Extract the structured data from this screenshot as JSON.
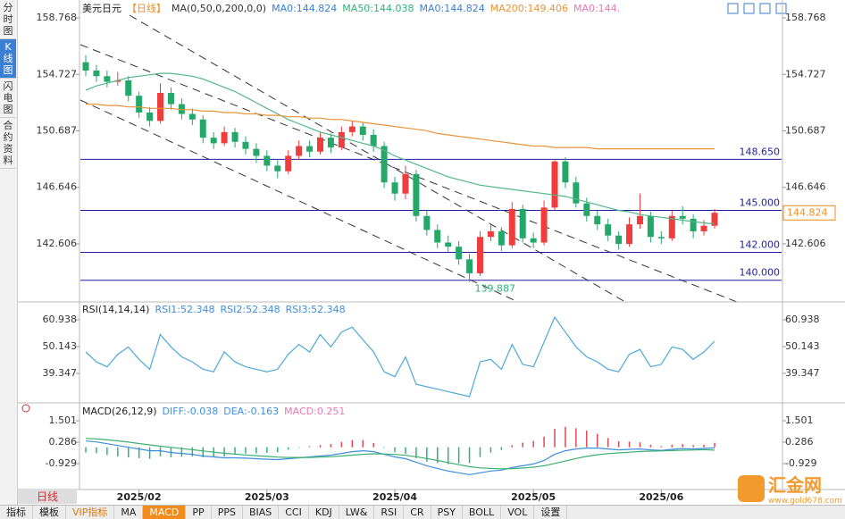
{
  "ui": {
    "tabs": [
      "分时图",
      "K线图",
      "闪电图",
      "合约资料"
    ],
    "period": "日线",
    "toolbar": [
      "指标",
      "模板",
      "VIP指标",
      "MA",
      "MACD",
      "PP",
      "PPS",
      "BIAS",
      "CCI",
      "KDJ",
      "LW&",
      "RSI",
      "CR",
      "PSY",
      "BOLL",
      "VOL",
      "设置"
    ],
    "watermark": "汇金网",
    "watermark_url": "www.gold678.com"
  },
  "chart_data": [
    {
      "type": "candlestick",
      "title": "美元日元",
      "period": "【日线】",
      "legend": [
        {
          "label": "MA(0,50,0,200,0,0)",
          "color": "#333333"
        },
        {
          "label": "MA0:144.824",
          "color": "#3a7fd5"
        },
        {
          "label": "MA50:144.038",
          "color": "#2fb27a"
        },
        {
          "label": "MA0:144.824",
          "color": "#3a7fd5"
        },
        {
          "label": "MA200:149.406",
          "color": "#e8943a"
        },
        {
          "label": "MA0:144.",
          "color": "#e879b0"
        }
      ],
      "up_color": "#f03c3c",
      "down_color": "#24a86a",
      "candles": [
        [
          155.6,
          156.1,
          154.6,
          155.0
        ],
        [
          155.0,
          155.4,
          154.2,
          154.6
        ],
        [
          154.6,
          155.0,
          153.8,
          154.2
        ],
        [
          154.2,
          154.9,
          153.9,
          154.3
        ],
        [
          154.3,
          154.6,
          152.8,
          153.2
        ],
        [
          153.2,
          153.5,
          151.6,
          152.0
        ],
        [
          152.0,
          152.4,
          151.0,
          151.4
        ],
        [
          151.4,
          154.1,
          151.2,
          153.4
        ],
        [
          153.4,
          153.8,
          152.2,
          152.6
        ],
        [
          152.6,
          153.0,
          151.5,
          151.9
        ],
        [
          151.9,
          152.3,
          151.1,
          151.5
        ],
        [
          151.5,
          151.8,
          149.8,
          150.2
        ],
        [
          150.2,
          150.6,
          149.4,
          149.8
        ],
        [
          149.8,
          151.0,
          149.6,
          150.6
        ],
        [
          150.6,
          150.9,
          149.5,
          149.9
        ],
        [
          149.9,
          150.3,
          149.0,
          149.4
        ],
        [
          149.4,
          149.8,
          148.4,
          148.9
        ],
        [
          148.9,
          149.3,
          147.8,
          148.2
        ],
        [
          148.2,
          148.6,
          147.3,
          147.8
        ],
        [
          147.8,
          149.3,
          147.6,
          148.9
        ],
        [
          148.9,
          150.0,
          148.6,
          149.6
        ],
        [
          149.6,
          150.0,
          148.8,
          149.2
        ],
        [
          149.2,
          150.6,
          149.0,
          150.2
        ],
        [
          150.2,
          150.5,
          149.1,
          149.5
        ],
        [
          149.5,
          151.0,
          149.3,
          150.6
        ],
        [
          150.6,
          151.4,
          150.3,
          151.0
        ],
        [
          151.0,
          151.3,
          150.0,
          150.4
        ],
        [
          150.4,
          150.8,
          149.2,
          149.6
        ],
        [
          149.6,
          149.9,
          146.6,
          147.0
        ],
        [
          147.0,
          147.4,
          145.7,
          146.2
        ],
        [
          146.2,
          148.2,
          145.8,
          147.6
        ],
        [
          147.6,
          147.9,
          144.2,
          144.6
        ],
        [
          144.6,
          145.0,
          143.2,
          143.6
        ],
        [
          143.6,
          144.0,
          142.3,
          142.7
        ],
        [
          142.7,
          143.2,
          142.0,
          142.4
        ],
        [
          142.4,
          142.8,
          141.1,
          141.5
        ],
        [
          141.5,
          141.9,
          139.887,
          140.5
        ],
        [
          140.5,
          143.5,
          140.3,
          143.1
        ],
        [
          143.1,
          144.0,
          142.8,
          143.5
        ],
        [
          143.5,
          143.8,
          142.1,
          142.5
        ],
        [
          142.5,
          145.6,
          142.3,
          145.1
        ],
        [
          145.1,
          145.4,
          142.7,
          143.0
        ],
        [
          143.0,
          143.4,
          142.3,
          142.7
        ],
        [
          142.7,
          145.7,
          142.5,
          145.2
        ],
        [
          145.2,
          148.65,
          145.0,
          148.5
        ],
        [
          148.5,
          148.8,
          146.6,
          147.0
        ],
        [
          147.0,
          147.4,
          145.2,
          145.5
        ],
        [
          145.5,
          145.9,
          144.2,
          144.6
        ],
        [
          144.6,
          145.0,
          143.6,
          144.0
        ],
        [
          144.0,
          144.4,
          142.8,
          143.2
        ],
        [
          143.2,
          143.5,
          142.2,
          142.6
        ],
        [
          142.6,
          144.5,
          142.4,
          144.0
        ],
        [
          144.0,
          146.2,
          143.7,
          144.6
        ],
        [
          144.6,
          144.9,
          142.7,
          143.1
        ],
        [
          143.1,
          143.5,
          142.6,
          143.0
        ],
        [
          143.0,
          145.0,
          142.8,
          144.6
        ],
        [
          144.6,
          145.3,
          144.0,
          144.4
        ],
        [
          144.4,
          144.7,
          143.0,
          143.5
        ],
        [
          143.5,
          144.3,
          143.2,
          143.9
        ],
        [
          143.9,
          145.1,
          143.7,
          144.824
        ]
      ],
      "series": [
        {
          "color": "#52b788",
          "values": [
            153.6,
            153.9,
            154.1,
            154.3,
            154.5,
            154.6,
            154.7,
            154.8,
            154.8,
            154.7,
            154.6,
            154.4,
            154.1,
            153.8,
            153.5,
            153.1,
            152.7,
            152.3,
            151.9,
            151.5,
            151.2,
            150.9,
            150.6,
            150.4,
            150.2,
            150.0,
            149.8,
            149.6,
            149.3,
            148.9,
            148.6,
            148.3,
            148.0,
            147.7,
            147.4,
            147.2,
            147.0,
            146.8,
            146.7,
            146.6,
            146.5,
            146.4,
            146.3,
            146.2,
            146.1,
            146.0,
            145.8,
            145.6,
            145.4,
            145.2,
            145.0,
            144.9,
            144.7,
            144.6,
            144.5,
            144.4,
            144.3,
            144.2,
            144.1,
            144.038
          ]
        },
        {
          "color": "#e8943a",
          "values": [
            152.6,
            152.6,
            152.5,
            152.5,
            152.4,
            152.4,
            152.3,
            152.3,
            152.3,
            152.2,
            152.2,
            152.1,
            152.1,
            152.0,
            152.0,
            151.9,
            151.9,
            151.8,
            151.8,
            151.7,
            151.7,
            151.6,
            151.6,
            151.5,
            151.5,
            151.4,
            151.3,
            151.2,
            151.1,
            151.0,
            150.9,
            150.8,
            150.7,
            150.5,
            150.4,
            150.3,
            150.2,
            150.1,
            150.0,
            149.9,
            149.8,
            149.7,
            149.6,
            149.6,
            149.5,
            149.5,
            149.5,
            149.5,
            149.4,
            149.4,
            149.4,
            149.4,
            149.4,
            149.4,
            149.4,
            149.4,
            149.4,
            149.4,
            149.4,
            149.406
          ]
        }
      ],
      "ylim": [
        138.45,
        159.73
      ],
      "yticks": [
        158.768,
        154.727,
        150.687,
        146.646,
        142.606
      ],
      "levels": [
        {
          "value": 148.65,
          "label": "148.650"
        },
        {
          "value": 145,
          "label": "145.000"
        },
        {
          "value": 142,
          "label": "142.000"
        },
        {
          "value": 140,
          "label": "140.000"
        }
      ],
      "xticks": [
        {
          "value": 5,
          "label": "2025/02"
        },
        {
          "value": 17,
          "label": "2025/03"
        },
        {
          "value": 29,
          "label": "2025/04"
        },
        {
          "value": 42,
          "label": "2025/05"
        },
        {
          "value": 54,
          "label": "2025/06"
        }
      ]
    },
    {
      "type": "line",
      "title": "RSI(14,14,14)",
      "legend": [
        {
          "label": "RSI1:52.348",
          "color": "#3d8fdc"
        },
        {
          "label": "RSI2:52.348",
          "color": "#3d8fdc"
        },
        {
          "label": "RSI3:52.348",
          "color": "#3d8fdc"
        }
      ],
      "series": [
        {
          "color": "#4aa8d8",
          "values": [
            48,
            44,
            42,
            47,
            50,
            45,
            41,
            55,
            50,
            46,
            44,
            41,
            40,
            48,
            44,
            42,
            41,
            40,
            41,
            47,
            51,
            48,
            55,
            50,
            56,
            58,
            53,
            48,
            40,
            38,
            46,
            35,
            34,
            33,
            32,
            31,
            30,
            44,
            45,
            41,
            51,
            43,
            42,
            52,
            62,
            56,
            50,
            46,
            44,
            41,
            40,
            47,
            49,
            42,
            43,
            50,
            49,
            45,
            48,
            52.348
          ]
        }
      ],
      "ylim": [
        28.55,
        67.42
      ],
      "yticks": [
        60.938,
        50.143,
        39.347
      ]
    },
    {
      "type": "macd",
      "title": "MACD(26,12,9)",
      "legend": [
        {
          "label": "DIFF:-0.038",
          "color": "#3d8fdc"
        },
        {
          "label": "DEA:-0.163",
          "color": "#3d8fdc"
        },
        {
          "label": "MACD:0.251",
          "color": "#e879b0"
        }
      ],
      "up_color": "#e0484f",
      "down_color": "#2fb27a",
      "histogram": [
        -0.3,
        -0.34,
        -0.44,
        -0.52,
        -0.58,
        -0.62,
        -0.66,
        -0.52,
        -0.58,
        -0.54,
        -0.52,
        -0.58,
        -0.54,
        -0.52,
        -0.42,
        -0.36,
        -0.34,
        -0.32,
        -0.28,
        -0.14,
        -0.04,
        0.06,
        0.12,
        0.18,
        0.3,
        0.4,
        0.4,
        0.24,
        -0.04,
        -0.28,
        -0.38,
        -0.62,
        -0.82,
        -0.9,
        -0.96,
        -0.92,
        -0.9,
        -0.56,
        -0.3,
        -0.16,
        0.12,
        0.26,
        0.36,
        0.6,
        1.04,
        1.16,
        1.08,
        0.94,
        0.76,
        0.52,
        0.34,
        0.32,
        0.28,
        0.14,
        0.06,
        0.14,
        0.18,
        0.12,
        0.14,
        0.251
      ],
      "series": [
        {
          "color": "#3d8fdc",
          "values": [
            0.35,
            0.3,
            0.2,
            0.1,
            0.0,
            -0.1,
            -0.2,
            -0.2,
            -0.3,
            -0.35,
            -0.4,
            -0.5,
            -0.55,
            -0.6,
            -0.6,
            -0.62,
            -0.65,
            -0.68,
            -0.7,
            -0.65,
            -0.6,
            -0.55,
            -0.5,
            -0.45,
            -0.35,
            -0.25,
            -0.2,
            -0.25,
            -0.4,
            -0.55,
            -0.65,
            -0.85,
            -1.05,
            -1.2,
            -1.35,
            -1.45,
            -1.55,
            -1.45,
            -1.35,
            -1.3,
            -1.15,
            -1.05,
            -0.95,
            -0.75,
            -0.4,
            -0.2,
            -0.1,
            -0.05,
            -0.05,
            -0.1,
            -0.15,
            -0.12,
            -0.1,
            -0.15,
            -0.18,
            -0.12,
            -0.08,
            -0.1,
            -0.07,
            -0.038
          ]
        },
        {
          "color": "#3cb070",
          "values": [
            0.5,
            0.47,
            0.42,
            0.36,
            0.29,
            0.21,
            0.13,
            0.06,
            -0.01,
            -0.08,
            -0.14,
            -0.21,
            -0.28,
            -0.34,
            -0.39,
            -0.44,
            -0.48,
            -0.52,
            -0.56,
            -0.58,
            -0.58,
            -0.58,
            -0.56,
            -0.54,
            -0.5,
            -0.45,
            -0.4,
            -0.37,
            -0.38,
            -0.41,
            -0.46,
            -0.54,
            -0.64,
            -0.75,
            -0.87,
            -0.99,
            -1.1,
            -1.17,
            -1.2,
            -1.22,
            -1.21,
            -1.18,
            -1.13,
            -1.05,
            -0.92,
            -0.78,
            -0.64,
            -0.52,
            -0.43,
            -0.36,
            -0.32,
            -0.28,
            -0.24,
            -0.22,
            -0.21,
            -0.19,
            -0.17,
            -0.16,
            -0.14,
            -0.163
          ]
        }
      ],
      "ylim": [
        -2.397,
        2.311
      ],
      "yticks": [
        1.501,
        0.286,
        -0.929
      ]
    }
  ]
}
